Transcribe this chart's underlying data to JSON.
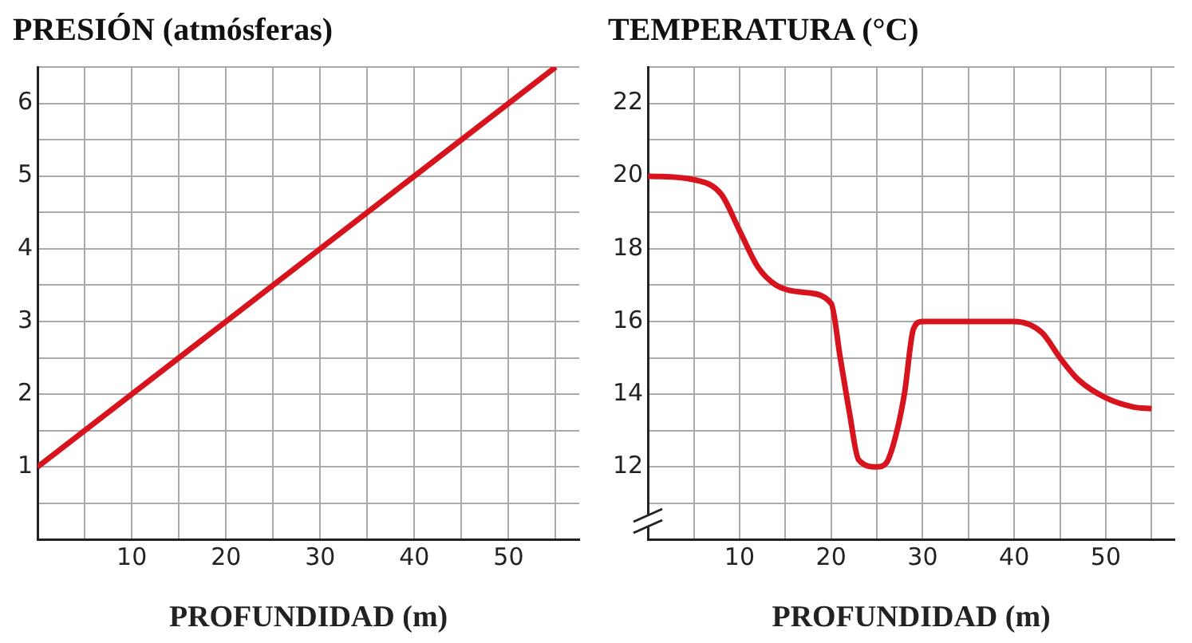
{
  "chart_data": [
    {
      "type": "line",
      "title": "PRESIÓN (atmósferas)",
      "xlabel": "PROFUNDIDAD (m)",
      "x": [
        0,
        55
      ],
      "values": [
        1,
        6.5
      ],
      "color": "#d7141e",
      "xlim": [
        0,
        57.5
      ],
      "xticks": [
        {
          "value": 5,
          "label": null
        },
        10,
        {
          "value": 15,
          "label": null
        },
        20,
        {
          "value": 25,
          "label": null
        },
        30,
        {
          "value": 35,
          "label": null
        },
        40,
        {
          "value": 45,
          "label": null
        },
        50,
        {
          "value": 55,
          "label": null
        }
      ],
      "ylim": [
        0,
        6.5
      ],
      "yticks": [
        {
          "value": 0.5,
          "label": null
        },
        1,
        {
          "value": 1.5,
          "label": null
        },
        2,
        {
          "value": 2.5,
          "label": null
        },
        3,
        {
          "value": 3.5,
          "label": null
        },
        4,
        {
          "value": 4.5,
          "label": null
        },
        5,
        {
          "value": 5.5,
          "label": null
        },
        6,
        {
          "value": 6.5,
          "label": null
        }
      ],
      "grid": true,
      "legend": false,
      "marker": "none",
      "line_style": "solid"
    },
    {
      "type": "line",
      "title": "TEMPERATURA (°C)",
      "xlabel": "PROFUNDIDAD (m)",
      "x": [
        0,
        5,
        8,
        10,
        12,
        14,
        17,
        20,
        21,
        22,
        23,
        25,
        26,
        27,
        28,
        29,
        30,
        35,
        40,
        43,
        45,
        47,
        50,
        53,
        55
      ],
      "values": [
        20,
        19.9,
        19.5,
        18.5,
        17.5,
        17,
        16.8,
        16.5,
        15,
        13.5,
        12.2,
        12,
        12.1,
        12.8,
        14,
        15.8,
        16,
        16,
        16,
        15.7,
        15,
        14.4,
        13.9,
        13.65,
        13.6
      ],
      "color": "#d7141e",
      "xlim": [
        0,
        57.5
      ],
      "xticks": [
        {
          "value": 5,
          "label": null
        },
        10,
        {
          "value": 15,
          "label": null
        },
        20,
        {
          "value": 25,
          "label": null
        },
        30,
        {
          "value": 35,
          "label": null
        },
        40,
        {
          "value": 45,
          "label": null
        },
        50,
        {
          "value": 55,
          "label": null
        }
      ],
      "ylim": [
        10,
        23
      ],
      "yticks": [
        {
          "value": 11,
          "label": null
        },
        12,
        {
          "value": 13,
          "label": null
        },
        14,
        {
          "value": 15,
          "label": null
        },
        16,
        {
          "value": 17,
          "label": null
        },
        18,
        {
          "value": 19,
          "label": null
        },
        20,
        {
          "value": 21,
          "label": null
        },
        22,
        {
          "value": 23,
          "label": null
        }
      ],
      "grid": true,
      "legend": false,
      "marker": "none",
      "line_style": "solid"
    }
  ]
}
